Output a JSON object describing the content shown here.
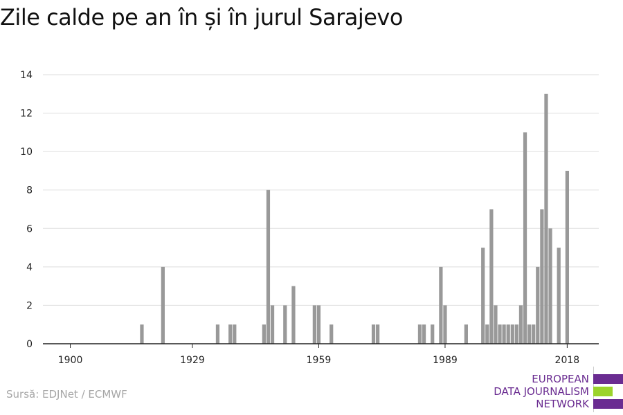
{
  "title": "Zile calde pe an în și în jurul Sarajevo",
  "source": "Sursă: EDJNet / ECMWF",
  "logo": {
    "lines": [
      "EUROPEAN",
      "DATA JOURNALISM",
      "NETWORK"
    ],
    "colors": {
      "purple": "#6a2c91",
      "green": "#9bd32b"
    }
  },
  "colors": {
    "bar": "#999999",
    "grid": "#dddddd",
    "axis": "#222222"
  },
  "chart_data": {
    "type": "bar",
    "title": "Zile calde pe an în și în jurul Sarajevo",
    "xlabel": "",
    "ylabel": "",
    "ylim": [
      0,
      14
    ],
    "yticks": [
      0,
      2,
      4,
      6,
      8,
      10,
      12,
      14
    ],
    "xticks": [
      1900,
      1929,
      1959,
      1989,
      2018
    ],
    "xlim": [
      1893.5,
      2025.5
    ],
    "grid": true,
    "x": [
      1917,
      1922,
      1935,
      1938,
      1939,
      1946,
      1947,
      1948,
      1951,
      1953,
      1958,
      1959,
      1962,
      1972,
      1973,
      1983,
      1984,
      1986,
      1988,
      1989,
      1994,
      1998,
      1999,
      2000,
      2001,
      2002,
      2003,
      2004,
      2005,
      2006,
      2007,
      2008,
      2009,
      2010,
      2011,
      2012,
      2013,
      2014,
      2015,
      2016,
      2018
    ],
    "values": [
      1,
      4,
      1,
      1,
      1,
      1,
      8,
      2,
      2,
      3,
      2,
      2,
      1,
      1,
      1,
      1,
      1,
      1,
      4,
      2,
      1,
      5,
      1,
      7,
      2,
      1,
      1,
      1,
      1,
      1,
      2,
      11,
      1,
      1,
      4,
      7,
      13,
      6,
      0,
      5,
      9
    ]
  }
}
